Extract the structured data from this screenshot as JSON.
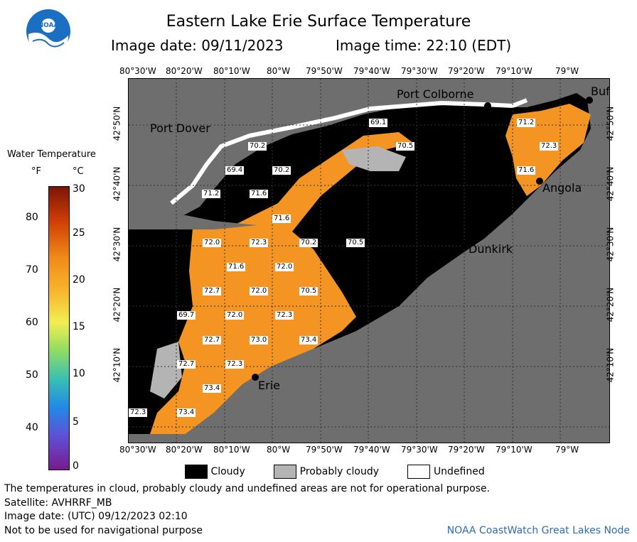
{
  "header": {
    "title": "Eastern Lake Erie Surface Temperature",
    "image_date_label": "Image date: 09/11/2023",
    "image_time_label": "Image time: 22:10 (EDT)",
    "logo_text": "NOAA"
  },
  "axes": {
    "top_lon": [
      "80°30'W",
      "80°20'W",
      "80°10'W",
      "80°W",
      "79°50'W",
      "79°40'W",
      "79°30'W",
      "79°20'W",
      "79°10'W",
      "79°W"
    ],
    "bottom_lon": [
      "80°30'W",
      "80°20'W",
      "80°10'W",
      "80°W",
      "79°50'W",
      "79°40'W",
      "79°30'W",
      "79°20'W",
      "79°10'W",
      "79°W"
    ],
    "left_lat": [
      "42°50'N",
      "42°40'N",
      "42°30'N",
      "42°20'N",
      "42°10'N"
    ],
    "right_lat": [
      "42°50'N",
      "42°40'N",
      "42°30'N",
      "42°20'N",
      "42°10'N"
    ]
  },
  "colorbar": {
    "title": "Water Temperature",
    "f_unit": "°F",
    "c_unit": "°C",
    "f_ticks": [
      "80",
      "70",
      "60",
      "50",
      "40"
    ],
    "c_ticks": [
      "30",
      "25",
      "20",
      "15",
      "10",
      "5",
      "0"
    ]
  },
  "places": {
    "port_colborne": "Port Colborne",
    "port_dover": "Port Dover",
    "angola": "Angola",
    "dunkirk": "Dunkirk",
    "erie": "Erie",
    "buffalo": "Buf"
  },
  "temps": [
    "69.1",
    "71.2",
    "70.2",
    "70.5",
    "72.3",
    "69.4",
    "70.2",
    "71.6",
    "71.2",
    "71.6",
    "71.6",
    "72.0",
    "72.3",
    "70.2",
    "70.5",
    "71.6",
    "72.0",
    "72.7",
    "72.0",
    "70.5",
    "69.7",
    "72.0",
    "72.3",
    "72.7",
    "73.0",
    "73.4",
    "72.7",
    "72.3",
    "73.4",
    "72.3",
    "73.4"
  ],
  "legend": {
    "cloudy": "Cloudy",
    "probably_cloudy": "Probably cloudy",
    "undefined": "Undefined"
  },
  "footer": {
    "disclaimer": "The temperatures in cloud, probably cloudy and undefined areas are not for operational purpose.",
    "satellite": "Satellite: AVHRRF_MB",
    "utc_date": "Image date: (UTC) 09/12/2023  02:10",
    "nav": "Not to be used for navigational purpose",
    "credit": "NOAA CoastWatch Great Lakes Node"
  },
  "colors": {
    "land": "#6e6e6e",
    "cloud": "#000000",
    "probably_cloudy": "#b4b4b4",
    "water_warm": "#f39423"
  }
}
